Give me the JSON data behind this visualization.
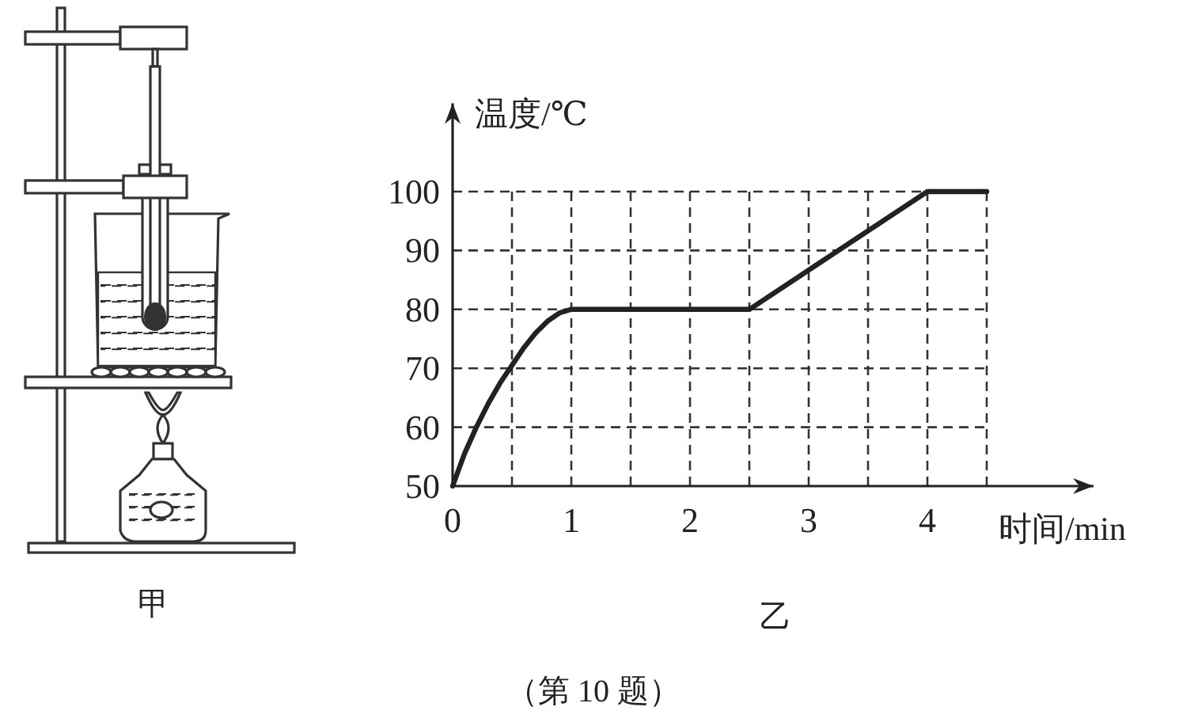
{
  "chart_data": {
    "type": "line",
    "xlabel": "时间/min",
    "ylabel": "温度/℃",
    "xlim": [
      0,
      5.4
    ],
    "ylim": [
      50,
      115
    ],
    "xticks": [
      0,
      {
        "value": 0.5,
        "label": null
      },
      1,
      {
        "value": 1.5,
        "label": null
      },
      2,
      {
        "value": 2.5,
        "label": null
      },
      3,
      {
        "value": 3.5,
        "label": null
      },
      4,
      {
        "value": 4.5,
        "label": null
      }
    ],
    "yticks": [
      50,
      60,
      70,
      80,
      90,
      100
    ],
    "x": [
      0,
      0.1,
      0.2,
      0.3,
      0.4,
      0.5,
      0.6,
      0.7,
      0.8,
      0.9,
      1,
      2.5,
      4,
      4.5
    ],
    "series": [
      {
        "color": "#222222",
        "values": [
          50,
          55.5,
          60,
          64,
          67.5,
          70.5,
          73.5,
          76,
          78,
          79.4,
          80,
          80,
          100,
          100
        ]
      }
    ],
    "grid": true,
    "marker": "none",
    "line_style": "solid",
    "annotations": [
      "甲",
      "乙",
      "（第 10 题）"
    ]
  }
}
